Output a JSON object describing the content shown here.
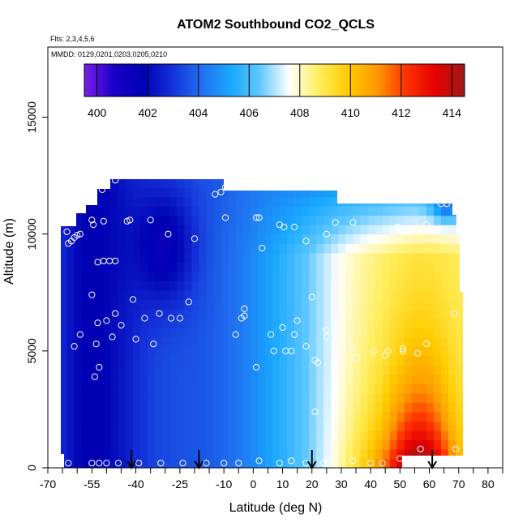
{
  "chart_data": {
    "type": "heatmap",
    "title": "ATOM2 Southbound CO2_QCLS",
    "subtitle": "Flts: 2,3,4,5,6",
    "annotation": "MMDD: 0129,0201,0203,0205,0210",
    "xlabel": "Latitude (deg N)",
    "ylabel": "Altitude (m)",
    "xlim": [
      -70,
      85
    ],
    "ylim": [
      0,
      18000
    ],
    "x_ticks": [
      -70,
      -65,
      -60,
      -55,
      -50,
      -45,
      -40,
      -35,
      -30,
      -25,
      -20,
      -15,
      -10,
      -5,
      0,
      5,
      10,
      15,
      20,
      25,
      30,
      35,
      40,
      45,
      50,
      55,
      60,
      65,
      70,
      75,
      80,
      85
    ],
    "x_tick_labels": [
      "-70",
      "",
      "",
      "-55",
      "",
      "",
      "-40",
      "",
      "",
      "-25",
      "",
      "",
      "-10",
      "",
      "0",
      "",
      "10",
      "",
      "20",
      "",
      "30",
      "",
      "40",
      "",
      "50",
      "",
      "60",
      "",
      "70",
      "",
      "80",
      ""
    ],
    "y_ticks": [
      0,
      5000,
      10000,
      15000
    ],
    "y_tick_labels": [
      "0",
      "5000",
      "10000",
      "15000"
    ],
    "colorbar": {
      "min": 399.5,
      "max": 414.5,
      "labels": [
        "400",
        "402",
        "404",
        "406",
        "408",
        "410",
        "412",
        "414"
      ],
      "label_values": [
        400,
        402,
        404,
        406,
        408,
        410,
        412,
        414
      ],
      "stops": [
        "#7a1ee8",
        "#1a00c8",
        "#0000b4",
        "#1430d8",
        "#2070f0",
        "#18a8ff",
        "#60c8ff",
        "#ffffff",
        "#ffee60",
        "#ffcc00",
        "#ff9900",
        "#ff3300",
        "#e60000",
        "#a01818"
      ]
    },
    "flight_markers_lat": [
      -41.5,
      -18.5,
      20,
      61
    ],
    "sample_points": [
      [
        -63.5,
        10100
      ],
      [
        -63,
        9600
      ],
      [
        -62,
        9700
      ],
      [
        -61,
        9850
      ],
      [
        -60,
        9950
      ],
      [
        -59,
        10000
      ],
      [
        -55,
        10600
      ],
      [
        -54.5,
        10400
      ],
      [
        -51,
        10550
      ],
      [
        -43,
        10550
      ],
      [
        -42,
        10600
      ],
      [
        -35,
        10600
      ],
      [
        -29,
        10000
      ],
      [
        -20,
        9800
      ],
      [
        -53,
        8800
      ],
      [
        -51,
        8850
      ],
      [
        -49,
        8850
      ],
      [
        -47,
        8850
      ],
      [
        -55,
        7400
      ],
      [
        -41,
        7200
      ],
      [
        -22,
        7100
      ],
      [
        -28,
        6400
      ],
      [
        -25,
        6400
      ],
      [
        -32,
        6600
      ],
      [
        -37,
        6400
      ],
      [
        -47,
        6600
      ],
      [
        -50,
        6300
      ],
      [
        -53,
        6200
      ],
      [
        -45,
        6100
      ],
      [
        -48,
        5600
      ],
      [
        -40,
        5500
      ],
      [
        -34,
        5300
      ],
      [
        -53.5,
        5300
      ],
      [
        -59,
        5700
      ],
      [
        -61,
        5200
      ],
      [
        -52.5,
        4300
      ],
      [
        -54,
        3900
      ],
      [
        -51.5,
        11900
      ],
      [
        -50,
        12100
      ],
      [
        -47,
        12300
      ],
      [
        -13,
        11700
      ],
      [
        -11,
        11800
      ],
      [
        -9.5,
        12000
      ],
      [
        -8,
        12000
      ],
      [
        -7,
        12000
      ],
      [
        -9.5,
        10700
      ],
      [
        1,
        10700
      ],
      [
        2,
        10700
      ],
      [
        9,
        10400
      ],
      [
        10.5,
        10300
      ],
      [
        14,
        10300
      ],
      [
        18,
        9700
      ],
      [
        25,
        10000
      ],
      [
        28,
        10500
      ],
      [
        34,
        10500
      ],
      [
        41,
        9700
      ],
      [
        49,
        10300
      ],
      [
        59,
        10400
      ],
      [
        64,
        11300
      ],
      [
        66,
        11300
      ],
      [
        3,
        9400
      ],
      [
        -4,
        6400
      ],
      [
        -3,
        6800
      ],
      [
        -3,
        6500
      ],
      [
        -6,
        5700
      ],
      [
        6,
        5700
      ],
      [
        7,
        5000
      ],
      [
        10,
        6000
      ],
      [
        14,
        5700
      ],
      [
        15,
        6300
      ],
      [
        20,
        7300
      ],
      [
        13,
        5000
      ],
      [
        18,
        5200
      ],
      [
        21,
        4600
      ],
      [
        25,
        5900
      ],
      [
        25,
        5600
      ],
      [
        29,
        4900
      ],
      [
        34,
        5100
      ],
      [
        41,
        5000
      ],
      [
        46,
        5000
      ],
      [
        51,
        5000
      ],
      [
        56,
        4900
      ],
      [
        51,
        5100
      ],
      [
        59,
        5300
      ],
      [
        68.5,
        6600
      ],
      [
        1,
        4300
      ],
      [
        11,
        5000
      ],
      [
        22,
        4500
      ],
      [
        35,
        4700
      ],
      [
        45,
        4800
      ],
      [
        21,
        2400
      ],
      [
        -63,
        200
      ],
      [
        -55,
        200
      ],
      [
        -52.5,
        200
      ],
      [
        -50,
        200
      ],
      [
        -46,
        200
      ],
      [
        -39,
        200
      ],
      [
        -31.5,
        200
      ],
      [
        -24,
        200
      ],
      [
        -16,
        200
      ],
      [
        -10,
        200
      ],
      [
        -5,
        200
      ],
      [
        2,
        300
      ],
      [
        9,
        200
      ],
      [
        13,
        300
      ],
      [
        18,
        200
      ],
      [
        24,
        200
      ],
      [
        28,
        200
      ],
      [
        34,
        300
      ],
      [
        40,
        200
      ],
      [
        44,
        200
      ],
      [
        50,
        400
      ],
      [
        54,
        200
      ],
      [
        57,
        800
      ],
      [
        69,
        800
      ]
    ]
  }
}
